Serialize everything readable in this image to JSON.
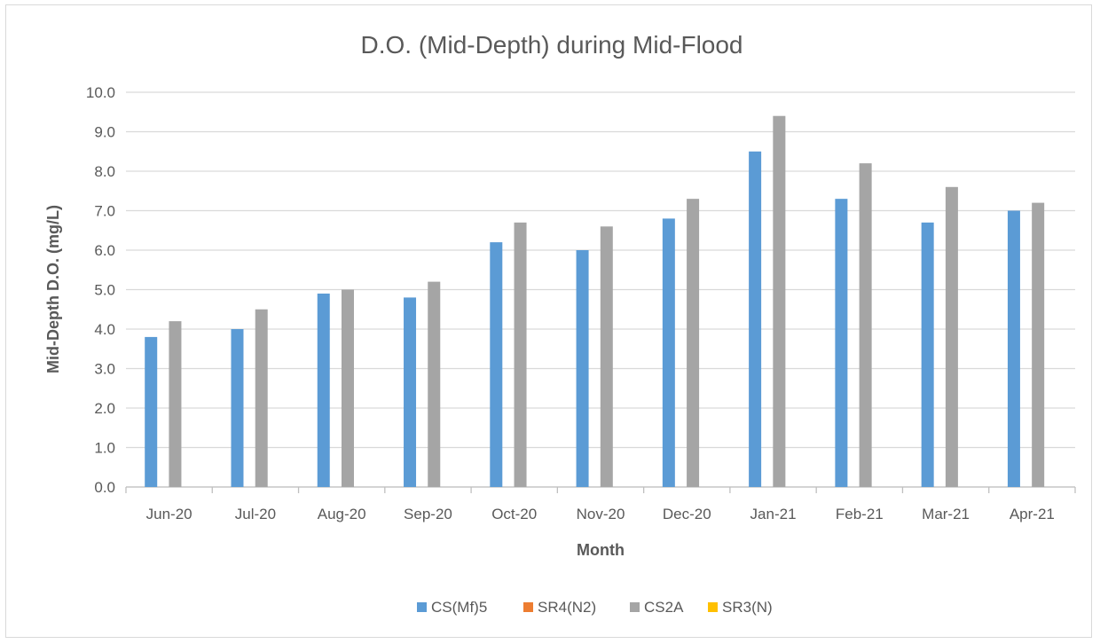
{
  "chart_data": {
    "type": "bar",
    "title": "D.O. (Mid-Depth) during Mid-Flood",
    "xlabel": "Month",
    "ylabel": "Mid-Depth D.O. (mg/L)",
    "ylim": [
      0,
      10
    ],
    "yticks": [
      "0.0",
      "1.0",
      "2.0",
      "3.0",
      "4.0",
      "5.0",
      "6.0",
      "7.0",
      "8.0",
      "9.0",
      "10.0"
    ],
    "grid": true,
    "legend_position": "bottom",
    "categories": [
      "Jun-20",
      "Jul-20",
      "Aug-20",
      "Sep-20",
      "Oct-20",
      "Nov-20",
      "Dec-20",
      "Jan-21",
      "Feb-21",
      "Mar-21",
      "Apr-21"
    ],
    "series": [
      {
        "name": "CS(Mf)5",
        "color": "#5b9bd5",
        "values": [
          3.8,
          4.0,
          4.9,
          4.8,
          6.2,
          6.0,
          6.8,
          8.5,
          7.3,
          6.7,
          7.0
        ]
      },
      {
        "name": "SR4(N2)",
        "color": "#ed7d31",
        "values": [
          null,
          null,
          null,
          null,
          null,
          null,
          null,
          null,
          null,
          null,
          null
        ]
      },
      {
        "name": "CS2A",
        "color": "#a5a5a5",
        "values": [
          4.2,
          4.5,
          5.0,
          5.2,
          6.7,
          6.6,
          7.3,
          9.4,
          8.2,
          7.6,
          7.2
        ]
      },
      {
        "name": "SR3(N)",
        "color": "#ffc000",
        "values": [
          null,
          null,
          null,
          null,
          null,
          null,
          null,
          null,
          null,
          null,
          null
        ]
      }
    ]
  }
}
